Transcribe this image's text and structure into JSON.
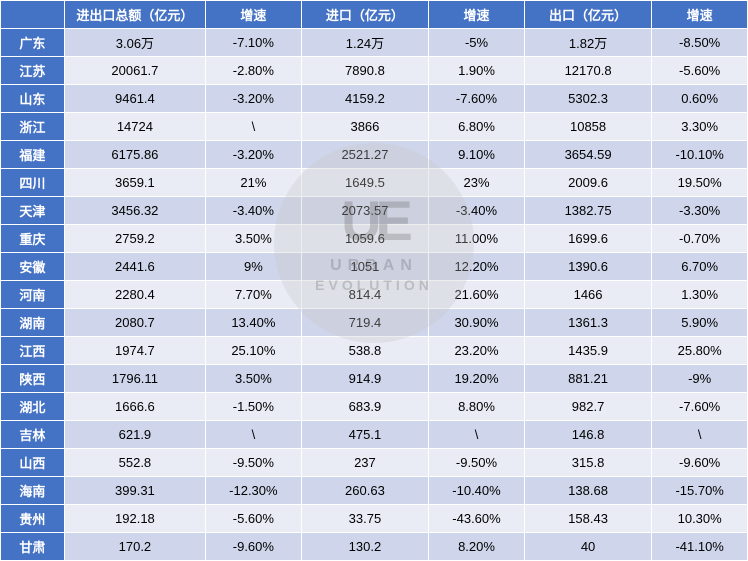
{
  "columns": [
    "",
    "进出口总额（亿元）",
    "增速",
    "进口（亿元）",
    "增速",
    "出口（亿元）",
    "增速"
  ],
  "rows": [
    {
      "p": "广东",
      "total": "3.06万",
      "tg": "-7.10%",
      "imp": "1.24万",
      "ig": "-5%",
      "exp": "1.82万",
      "eg": "-8.50%"
    },
    {
      "p": "江苏",
      "total": "20061.7",
      "tg": "-2.80%",
      "imp": "7890.8",
      "ig": "1.90%",
      "exp": "12170.8",
      "eg": "-5.60%"
    },
    {
      "p": "山东",
      "total": "9461.4",
      "tg": "-3.20%",
      "imp": "4159.2",
      "ig": "-7.60%",
      "exp": "5302.3",
      "eg": "0.60%"
    },
    {
      "p": "浙江",
      "total": "14724",
      "tg": "\\",
      "imp": "3866",
      "ig": "6.80%",
      "exp": "10858",
      "eg": "3.30%"
    },
    {
      "p": "福建",
      "total": "6175.86",
      "tg": "-3.20%",
      "imp": "2521.27",
      "ig": "9.10%",
      "exp": "3654.59",
      "eg": "-10.10%"
    },
    {
      "p": "四川",
      "total": "3659.1",
      "tg": "21%",
      "imp": "1649.5",
      "ig": "23%",
      "exp": "2009.6",
      "eg": "19.50%"
    },
    {
      "p": "天津",
      "total": "3456.32",
      "tg": "-3.40%",
      "imp": "2073.57",
      "ig": "-3.40%",
      "exp": "1382.75",
      "eg": "-3.30%"
    },
    {
      "p": "重庆",
      "total": "2759.2",
      "tg": "3.50%",
      "imp": "1059.6",
      "ig": "11.00%",
      "exp": "1699.6",
      "eg": "-0.70%"
    },
    {
      "p": "安徽",
      "total": "2441.6",
      "tg": "9%",
      "imp": "1051",
      "ig": "12.20%",
      "exp": "1390.6",
      "eg": "6.70%"
    },
    {
      "p": "河南",
      "total": "2280.4",
      "tg": "7.70%",
      "imp": "814.4",
      "ig": "21.60%",
      "exp": "1466",
      "eg": "1.30%"
    },
    {
      "p": "湖南",
      "total": "2080.7",
      "tg": "13.40%",
      "imp": "719.4",
      "ig": "30.90%",
      "exp": "1361.3",
      "eg": "5.90%"
    },
    {
      "p": "江西",
      "total": "1974.7",
      "tg": "25.10%",
      "imp": "538.8",
      "ig": "23.20%",
      "exp": "1435.9",
      "eg": "25.80%"
    },
    {
      "p": "陕西",
      "total": "1796.11",
      "tg": "3.50%",
      "imp": "914.9",
      "ig": "19.20%",
      "exp": "881.21",
      "eg": "-9%"
    },
    {
      "p": "湖北",
      "total": "1666.6",
      "tg": "-1.50%",
      "imp": "683.9",
      "ig": "8.80%",
      "exp": "982.7",
      "eg": "-7.60%"
    },
    {
      "p": "吉林",
      "total": "621.9",
      "tg": "\\",
      "imp": "475.1",
      "ig": "\\",
      "exp": "146.8",
      "eg": "\\"
    },
    {
      "p": "山西",
      "total": "552.8",
      "tg": "-9.50%",
      "imp": "237",
      "ig": "-9.50%",
      "exp": "315.8",
      "eg": "-9.60%"
    },
    {
      "p": "海南",
      "total": "399.31",
      "tg": "-12.30%",
      "imp": "260.63",
      "ig": "-10.40%",
      "exp": "138.68",
      "eg": "-15.70%"
    },
    {
      "p": "贵州",
      "total": "192.18",
      "tg": "-5.60%",
      "imp": "33.75",
      "ig": "-43.60%",
      "exp": "158.43",
      "eg": "10.30%"
    },
    {
      "p": "甘肃",
      "total": "170.2",
      "tg": "-9.60%",
      "imp": "130.2",
      "ig": "8.20%",
      "exp": "40",
      "eg": "-41.10%"
    }
  ],
  "watermark": {
    "logo": "UE",
    "line1": "URBAN",
    "line2": "EVOLUTION"
  },
  "colors": {
    "header_bg": "#4472c4",
    "header_fg": "#ffffff",
    "row_odd_bg": "#cfd5ea",
    "row_even_bg": "#e9ebf5",
    "border": "#ffffff",
    "text": "#000000"
  }
}
